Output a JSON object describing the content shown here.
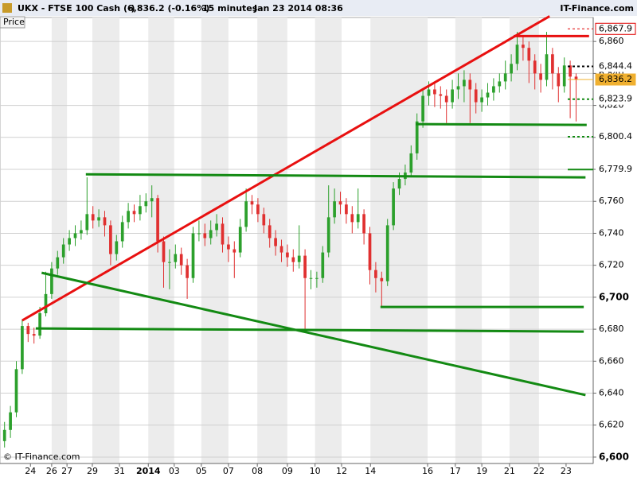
{
  "chart_data": {
    "type": "candlestick",
    "title": "UKX - FTSE 100 Cash (-)",
    "last_quote": "6,836.2 (-0.16%)",
    "interval": "15 minutes",
    "timestamp": "Jan 23 2014 08:36",
    "brand": "IT-Finance.com",
    "panel_label": "Price",
    "copyright": "© IT-Finance.com",
    "up_color": "#2ca02c",
    "down_color": "#e03030",
    "grid": true,
    "xlim": [
      -0.5,
      99.5
    ],
    "ylim": [
      6596,
      6875
    ],
    "xticks": [
      {
        "value": 4.4,
        "label": "24"
      },
      {
        "value": 8.0,
        "label": "26"
      },
      {
        "value": 10.6,
        "label": "27"
      },
      {
        "value": 14.9,
        "label": "29"
      },
      {
        "value": 19.5,
        "label": "31"
      },
      {
        "value": 24.4,
        "label": "2014"
      },
      {
        "value": 28.8,
        "label": "03"
      },
      {
        "value": 33.4,
        "label": "05"
      },
      {
        "value": 38.0,
        "label": "07"
      },
      {
        "value": 42.9,
        "label": "08"
      },
      {
        "value": 48.0,
        "label": "09"
      },
      {
        "value": 52.7,
        "label": "10"
      },
      {
        "value": 57.2,
        "label": "12"
      },
      {
        "value": 62.1,
        "label": "14"
      },
      {
        "value": 71.8,
        "label": "16"
      },
      {
        "value": 76.5,
        "label": "17"
      },
      {
        "value": 81.0,
        "label": "19"
      },
      {
        "value": 85.7,
        "label": "21"
      },
      {
        "value": 90.7,
        "label": "22"
      },
      {
        "value": 95.3,
        "label": "23"
      }
    ],
    "yticks": [
      {
        "value": 6600,
        "label": "6,600"
      },
      {
        "value": 6620,
        "label": "6,620"
      },
      {
        "value": 6640,
        "label": "6,640"
      },
      {
        "value": 6660,
        "label": "6,660"
      },
      {
        "value": 6680,
        "label": "6,680"
      },
      {
        "value": 6700,
        "label": "6,700"
      },
      {
        "value": 6720,
        "label": "6,720"
      },
      {
        "value": 6740,
        "label": "6,740"
      },
      {
        "value": 6760,
        "label": "6,760"
      },
      {
        "value": 6780,
        "label": "6,780"
      },
      {
        "value": 6800,
        "label": "6,800"
      },
      {
        "value": 6820,
        "label": "6,820"
      },
      {
        "value": 6840,
        "label": "6,840"
      },
      {
        "value": 6860,
        "label": "6,860"
      }
    ],
    "open": [
      6610,
      6617,
      6628,
      6655,
      6682,
      6677,
      6676,
      6690,
      6702,
      6718,
      6725,
      6733,
      6737,
      6740,
      6742,
      6752,
      6748,
      6750,
      6745,
      6727,
      6735,
      6747,
      6754,
      6752,
      6757,
      6760,
      6762,
      6735,
      6722,
      6722,
      6727,
      6720,
      6712,
      6740,
      6740,
      6737,
      6742,
      6746,
      6733,
      6730,
      6728,
      6744,
      6760,
      6758,
      6752,
      6745,
      6737,
      6732,
      6728,
      6725,
      6722,
      6726,
      6712,
      6712,
      6712,
      6728,
      6750,
      6760,
      6758,
      6752,
      6747,
      6752,
      6740,
      6717,
      6712,
      6710,
      6745,
      6768,
      6774,
      6778,
      6790,
      6810,
      6826,
      6830,
      6827,
      6826,
      6822,
      6830,
      6832,
      6836,
      6830,
      6822,
      6825,
      6828,
      6832,
      6835,
      6840,
      6846,
      6858,
      6856,
      6848,
      6840,
      6836,
      6852,
      6840,
      6832,
      6845,
      6838
    ],
    "high": [
      6622,
      6632,
      6660,
      6686,
      6684,
      6681,
      6694,
      6716,
      6722,
      6729,
      6737,
      6742,
      6745,
      6748,
      6775,
      6757,
      6755,
      6754,
      6748,
      6739,
      6751,
      6759,
      6758,
      6764,
      6765,
      6770,
      6764,
      6738,
      6730,
      6733,
      6731,
      6724,
      6744,
      6748,
      6746,
      6748,
      6752,
      6750,
      6738,
      6735,
      6749,
      6768,
      6764,
      6762,
      6756,
      6749,
      6742,
      6736,
      6733,
      6730,
      6745,
      6730,
      6717,
      6716,
      6732,
      6770,
      6768,
      6766,
      6762,
      6757,
      6768,
      6755,
      6744,
      6722,
      6716,
      6749,
      6772,
      6778,
      6783,
      6795,
      6815,
      6830,
      6835,
      6834,
      6832,
      6830,
      6836,
      6840,
      6842,
      6840,
      6834,
      6830,
      6834,
      6837,
      6840,
      6848,
      6852,
      6866,
      6864,
      6860,
      6852,
      6846,
      6866,
      6856,
      6844,
      6850,
      6848,
      6840
    ],
    "low": [
      6606,
      6612,
      6625,
      6652,
      6672,
      6671,
      6674,
      6688,
      6699,
      6714,
      6721,
      6729,
      6732,
      6736,
      6739,
      6743,
      6744,
      6738,
      6720,
      6723,
      6731,
      6743,
      6747,
      6748,
      6753,
      6750,
      6728,
      6706,
      6705,
      6718,
      6714,
      6699,
      6709,
      6735,
      6732,
      6733,
      6738,
      6728,
      6722,
      6712,
      6725,
      6741,
      6752,
      6747,
      6740,
      6731,
      6726,
      6722,
      6719,
      6716,
      6718,
      6680,
      6705,
      6706,
      6709,
      6725,
      6746,
      6752,
      6746,
      6740,
      6743,
      6733,
      6708,
      6703,
      6694,
      6707,
      6742,
      6764,
      6770,
      6775,
      6786,
      6806,
      6820,
      6819,
      6818,
      6809,
      6818,
      6824,
      6822,
      6809,
      6815,
      6816,
      6820,
      6823,
      6828,
      6830,
      6835,
      6842,
      6848,
      6834,
      6830,
      6828,
      6832,
      6830,
      6822,
      6828,
      6812,
      6810
    ],
    "close": [
      6617,
      6628,
      6655,
      6682,
      6677,
      6676,
      6690,
      6702,
      6718,
      6725,
      6733,
      6737,
      6740,
      6742,
      6752,
      6748,
      6750,
      6745,
      6727,
      6735,
      6747,
      6754,
      6752,
      6757,
      6760,
      6762,
      6735,
      6722,
      6722,
      6727,
      6720,
      6712,
      6740,
      6740,
      6737,
      6742,
      6746,
      6733,
      6730,
      6728,
      6744,
      6760,
      6758,
      6752,
      6745,
      6737,
      6732,
      6728,
      6725,
      6722,
      6726,
      6712,
      6712,
      6712,
      6728,
      6750,
      6760,
      6758,
      6752,
      6747,
      6752,
      6740,
      6717,
      6712,
      6710,
      6745,
      6768,
      6774,
      6778,
      6790,
      6810,
      6826,
      6830,
      6827,
      6826,
      6822,
      6830,
      6832,
      6836,
      6830,
      6822,
      6825,
      6828,
      6832,
      6835,
      6840,
      6846,
      6858,
      6856,
      6848,
      6840,
      6836,
      6852,
      6840,
      6832,
      6845,
      6838,
      6836.2
    ],
    "trendlines": [
      {
        "color": "#e81010",
        "x": [
          3.0,
          92.5
        ],
        "y": [
          6685.5,
          6875.8
        ]
      },
      {
        "color": "#e81010",
        "x": [
          86.4,
          99.2
        ],
        "y": [
          6863.4,
          6863.4
        ]
      },
      {
        "color": "#138a13",
        "x": [
          69.8,
          98.8
        ],
        "y": [
          6808.3,
          6807.8
        ]
      },
      {
        "color": "#138a13",
        "x": [
          13.8,
          98.6
        ],
        "y": [
          6776.9,
          6775.0
        ]
      },
      {
        "color": "#138a13",
        "x": [
          6.3,
          98.6
        ],
        "y": [
          6715.3,
          6638.8
        ]
      },
      {
        "color": "#138a13",
        "x": [
          63.8,
          98.3
        ],
        "y": [
          6693.9,
          6693.9
        ]
      },
      {
        "color": "#138a13",
        "x": [
          5.3,
          98.3
        ],
        "y": [
          6680.5,
          6678.5
        ]
      }
    ],
    "levels": [
      {
        "value": 6867.9,
        "label": "6,867.9",
        "color": "#e00000",
        "style": "dashed",
        "box": "outline"
      },
      {
        "value": 6844.4,
        "label": "6,844.4",
        "color": "#000000",
        "style": "dashed",
        "box": "none"
      },
      {
        "value": 6836.2,
        "label": "6,836.2",
        "color": "#f0b030",
        "style": "solid",
        "box": "filled"
      },
      {
        "value": 6823.9,
        "label": "6,823.9",
        "color": "#138a13",
        "style": "dashed",
        "box": "none"
      },
      {
        "value": 6800.4,
        "label": "6,800.4",
        "color": "#138a13",
        "style": "dashed",
        "box": "none"
      },
      {
        "value": 6779.9,
        "label": "6,779.9",
        "color": "#138a13",
        "style": "solid",
        "box": "none"
      }
    ]
  }
}
